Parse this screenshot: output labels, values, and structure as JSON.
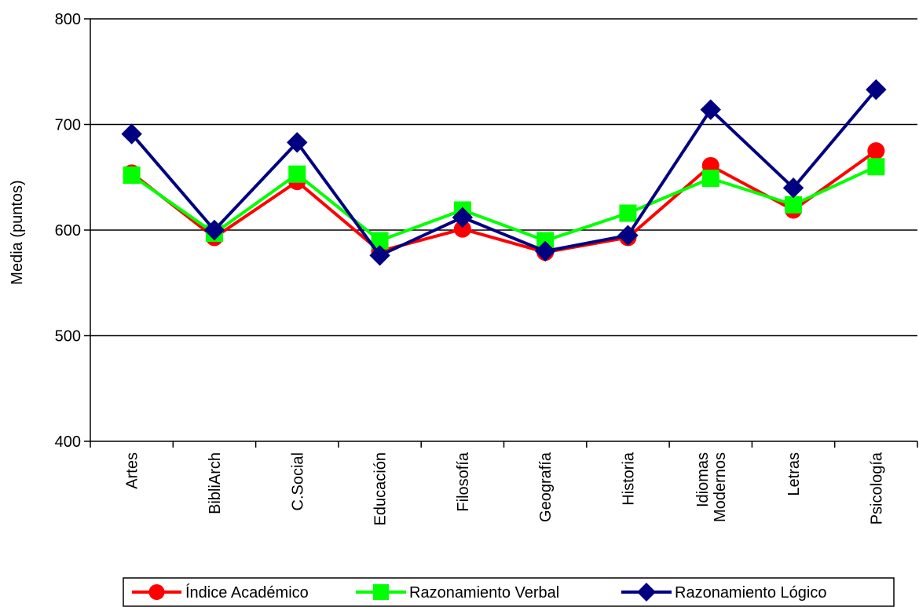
{
  "chart_data": {
    "type": "line",
    "ylabel": "Media (puntos)",
    "xlabel": "",
    "ylim": [
      400,
      800
    ],
    "yticks": [
      400,
      500,
      600,
      700,
      800
    ],
    "grid": "horizontal",
    "legend_position": "bottom",
    "categories": [
      [
        "Artes"
      ],
      [
        "BibliArch"
      ],
      [
        "C.Social"
      ],
      [
        "Educación"
      ],
      [
        "Filosofía"
      ],
      [
        "Geografía"
      ],
      [
        "Historia"
      ],
      [
        "Idiomas",
        "Modernos"
      ],
      [
        "Letras"
      ],
      [
        "Psicología"
      ]
    ],
    "series": [
      {
        "name": "Índice Académico",
        "color": "#ff0000",
        "marker": "circle",
        "values": [
          654,
          593,
          646,
          580,
          601,
          579,
          593,
          661,
          619,
          675
        ]
      },
      {
        "name": "Razonamiento Verbal",
        "color": "#00ff00",
        "marker": "square",
        "values": [
          652,
          597,
          653,
          590,
          619,
          590,
          616,
          649,
          624,
          660
        ]
      },
      {
        "name": "Razonamiento Lógico",
        "color": "#000080",
        "marker": "diamond",
        "values": [
          691,
          600,
          683,
          576,
          612,
          580,
          595,
          714,
          640,
          733
        ]
      }
    ]
  }
}
